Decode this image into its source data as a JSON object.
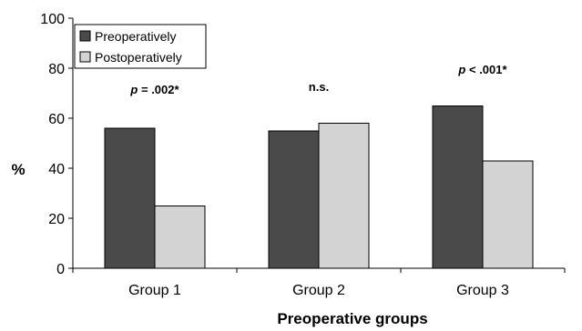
{
  "chart_data": {
    "type": "bar",
    "categories": [
      "Group 1",
      "Group 2",
      "Group 3"
    ],
    "series": [
      {
        "name": "Preoperatively",
        "values": [
          56,
          55,
          65
        ],
        "color": "#4a4a4a"
      },
      {
        "name": "Postoperatively",
        "values": [
          25,
          58,
          43
        ],
        "color": "#d3d3d3"
      }
    ],
    "xlabel": "Preoperative groups",
    "ylabel": "%",
    "ylim": [
      0,
      100
    ],
    "yticks": [
      0,
      20,
      40,
      60,
      80,
      100
    ],
    "annotations": [
      "p = .002*",
      "n.s.",
      "p < .001*"
    ],
    "legend_position": "top-left",
    "grid": false
  }
}
